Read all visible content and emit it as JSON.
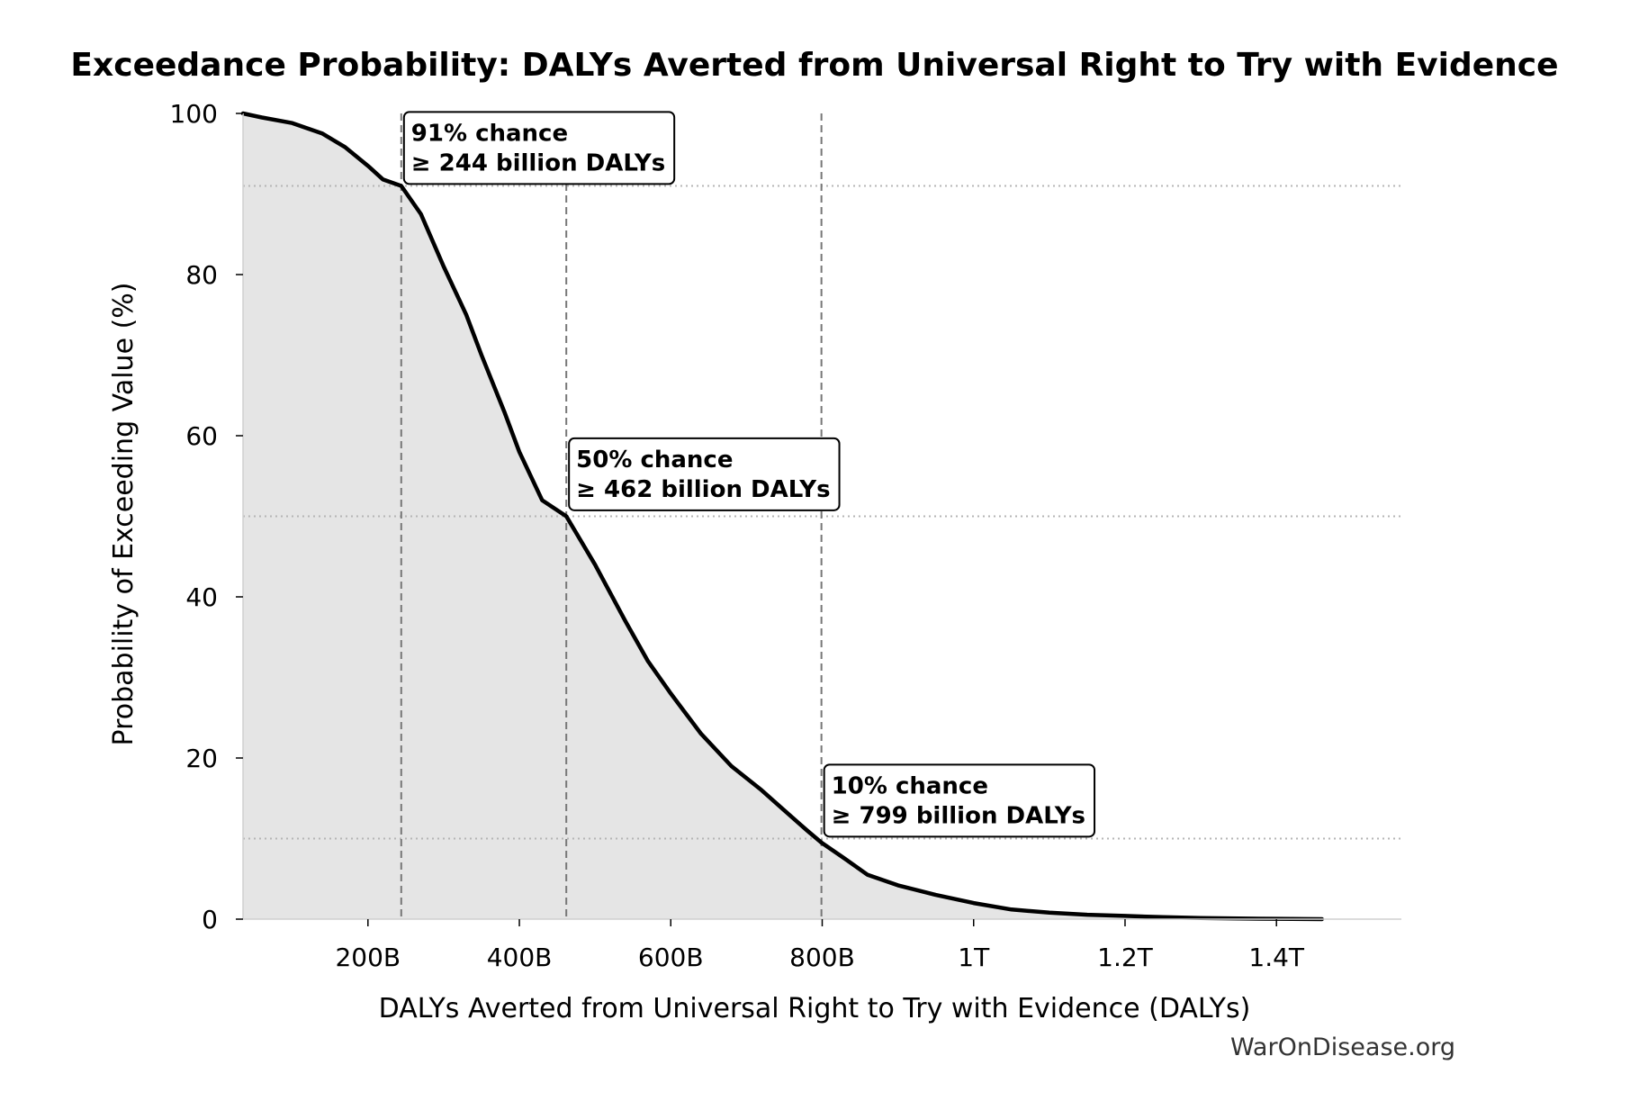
{
  "chart_data": {
    "type": "area",
    "title": "Exceedance Probability: DALYs Averted from Universal Right to Try with Evidence",
    "xlabel": "DALYs Averted from Universal Right to Try with Evidence (DALYs)",
    "ylabel": "Probability of Exceeding Value (%)",
    "xlim": [
      35,
      1565
    ],
    "ylim": [
      0,
      100
    ],
    "x_ticks": [
      {
        "value": 200,
        "label": "200B"
      },
      {
        "value": 400,
        "label": "400B"
      },
      {
        "value": 600,
        "label": "600B"
      },
      {
        "value": 800,
        "label": "800B"
      },
      {
        "value": 1000,
        "label": "1T"
      },
      {
        "value": 1200,
        "label": "1.2T"
      },
      {
        "value": 1400,
        "label": "1.4T"
      }
    ],
    "y_ticks": [
      {
        "value": 0,
        "label": "0"
      },
      {
        "value": 20,
        "label": "20"
      },
      {
        "value": 40,
        "label": "40"
      },
      {
        "value": 60,
        "label": "60"
      },
      {
        "value": 80,
        "label": "80"
      },
      {
        "value": 100,
        "label": "100"
      }
    ],
    "x_units": "billion DALYs",
    "series": [
      {
        "x": [
          35,
          60,
          100,
          140,
          170,
          200,
          220,
          244,
          270,
          300,
          330,
          350,
          380,
          400,
          430,
          462,
          500,
          540,
          570,
          600,
          640,
          680,
          720,
          750,
          780,
          799,
          830,
          860,
          900,
          950,
          1000,
          1050,
          1100,
          1150,
          1200,
          1250,
          1300,
          1350,
          1400,
          1460
        ],
        "values": [
          100,
          99.5,
          98.8,
          97.5,
          95.8,
          93.5,
          91.8,
          91,
          87.5,
          81,
          75,
          70,
          63,
          58,
          52,
          50,
          44,
          37,
          32,
          28,
          23,
          19,
          16,
          13.5,
          11,
          9.5,
          7.5,
          5.5,
          4.2,
          3,
          2,
          1.2,
          0.8,
          0.55,
          0.4,
          0.25,
          0.15,
          0.08,
          0.04,
          0
        ]
      }
    ],
    "vlines": [
      244,
      462,
      799
    ],
    "hlines": [
      91,
      50,
      10
    ],
    "annotations": [
      {
        "x": 244,
        "y": 97.5,
        "line1": "91% chance",
        "line2": "≥ 244 billion DALYs"
      },
      {
        "x": 462,
        "y": 57,
        "line1": "50% chance",
        "line2": "≥ 462 billion DALYs"
      },
      {
        "x": 799,
        "y": 16.5,
        "line1": "10% chance",
        "line2": "≥ 799 billion DALYs"
      }
    ],
    "grid": false,
    "fill_color": "#e5e5e5",
    "line_color": "#000000",
    "ref_line_color": "#777777",
    "hline_color": "#b5b5b5"
  },
  "watermark": "WarOnDisease.org"
}
